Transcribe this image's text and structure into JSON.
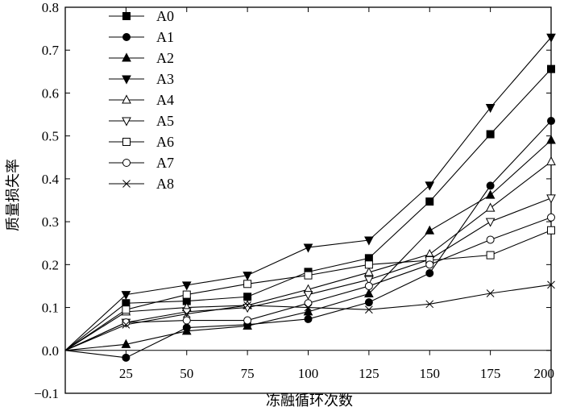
{
  "chart_data": {
    "type": "line",
    "xlabel": "冻融循环次数",
    "ylabel": "质量损失率",
    "xlim": [
      0,
      200
    ],
    "ylim": [
      -0.1,
      0.8
    ],
    "x_ticks": [
      "25",
      "50",
      "75",
      "100",
      "125",
      "150",
      "175",
      "200"
    ],
    "y_ticks": [
      "-0.1",
      "0.0",
      "0.1",
      "0.2",
      "0.3",
      "0.4",
      "0.5",
      "0.6",
      "0.7",
      "0.8"
    ],
    "x": [
      0,
      25,
      50,
      75,
      100,
      125,
      150,
      175,
      200
    ],
    "legend_position": "top-left",
    "grid": false,
    "series": [
      {
        "name": "A0",
        "marker": "square-filled",
        "values": [
          0,
          0.11,
          0.115,
          0.125,
          0.183,
          0.215,
          0.347,
          0.504,
          0.656
        ]
      },
      {
        "name": "A1",
        "marker": "circle-filled",
        "values": [
          0,
          -0.017,
          0.053,
          0.06,
          0.073,
          0.112,
          0.18,
          0.384,
          0.535
        ]
      },
      {
        "name": "A2",
        "marker": "triangle-up-filled",
        "values": [
          0,
          0.014,
          0.045,
          0.057,
          0.09,
          0.132,
          0.279,
          0.362,
          0.49
        ]
      },
      {
        "name": "A3",
        "marker": "triangle-down-filled",
        "values": [
          0,
          0.13,
          0.152,
          0.175,
          0.24,
          0.257,
          0.385,
          0.566,
          0.73
        ]
      },
      {
        "name": "A4",
        "marker": "triangle-up-open",
        "values": [
          0,
          0.09,
          0.1,
          0.105,
          0.142,
          0.182,
          0.224,
          0.332,
          0.44
        ]
      },
      {
        "name": "A5",
        "marker": "triangle-down-open",
        "values": [
          0,
          0.065,
          0.09,
          0.1,
          0.13,
          0.165,
          0.212,
          0.3,
          0.355
        ]
      },
      {
        "name": "A6",
        "marker": "square-open",
        "values": [
          0,
          0.095,
          0.13,
          0.155,
          0.175,
          0.2,
          0.21,
          0.222,
          0.28
        ]
      },
      {
        "name": "A7",
        "marker": "circle-open",
        "values": [
          0,
          0.065,
          0.07,
          0.07,
          0.11,
          0.15,
          0.2,
          0.258,
          0.31
        ]
      },
      {
        "name": "A8",
        "marker": "cross",
        "values": [
          0,
          0.06,
          0.085,
          0.105,
          0.1,
          0.095,
          0.108,
          0.133,
          0.153
        ]
      }
    ]
  }
}
